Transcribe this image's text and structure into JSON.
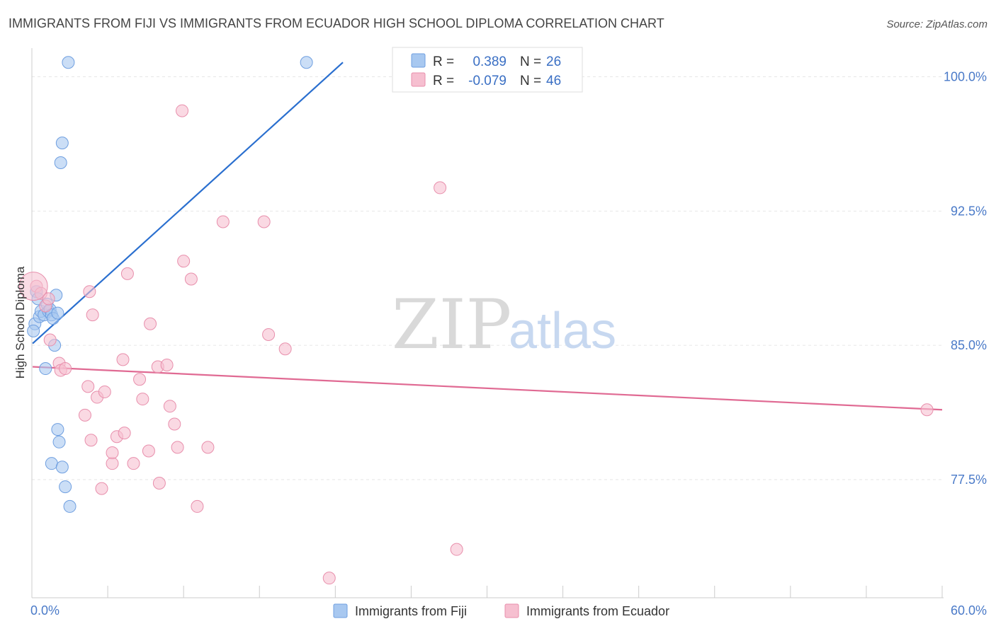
{
  "chart_data": {
    "type": "scatter",
    "title": "IMMIGRANTS FROM FIJI VS IMMIGRANTS FROM ECUADOR HIGH SCHOOL DIPLOMA CORRELATION CHART",
    "source": "Source: ZipAtlas.com",
    "xlabel": "",
    "ylabel": "High School Diploma",
    "xlim": [
      0,
      60
    ],
    "ylim": [
      70.9,
      101.6
    ],
    "x_tick_labels": [
      "0.0%",
      "60.0%"
    ],
    "y_ticks": [
      77.5,
      85.0,
      92.5,
      100.0
    ],
    "y_tick_labels": [
      "77.5%",
      "85.0%",
      "92.5%",
      "100.0%"
    ],
    "watermark": {
      "zip": "ZIP",
      "atlas": "atlas"
    },
    "legend": {
      "r_label": "R =",
      "n_label": "N =",
      "entries": [
        {
          "r": "0.389",
          "n": "26"
        },
        {
          "r": "-0.079",
          "n": "46"
        }
      ]
    },
    "series": [
      {
        "name": "Immigrants from Fiji",
        "color": "#a8c8f0",
        "stroke": "#6f9fe0",
        "line_color": "#2a6fcf",
        "trend": [
          [
            0.05,
            85.1
          ],
          [
            20.5,
            100.8
          ]
        ],
        "points": [
          [
            0.2,
            86.2
          ],
          [
            0.3,
            88.0
          ],
          [
            0.4,
            87.6
          ],
          [
            0.5,
            86.6
          ],
          [
            0.6,
            86.9
          ],
          [
            0.8,
            86.7
          ],
          [
            0.9,
            83.7
          ],
          [
            1.0,
            87.3
          ],
          [
            1.1,
            86.9
          ],
          [
            1.2,
            87.0
          ],
          [
            1.3,
            86.7
          ],
          [
            1.4,
            86.5
          ],
          [
            1.5,
            85.0
          ],
          [
            1.6,
            87.8
          ],
          [
            1.7,
            86.8
          ],
          [
            1.7,
            80.3
          ],
          [
            1.8,
            79.6
          ],
          [
            1.3,
            78.4
          ],
          [
            2.0,
            78.2
          ],
          [
            2.2,
            77.1
          ],
          [
            2.5,
            76.0
          ],
          [
            2.0,
            96.3
          ],
          [
            1.9,
            95.2
          ],
          [
            2.4,
            100.8
          ],
          [
            18.1,
            100.8
          ],
          [
            0.1,
            85.8
          ]
        ]
      },
      {
        "name": "Immigrants from Ecuador",
        "color": "#f6bfd0",
        "stroke": "#e88fac",
        "line_color": "#e06a93",
        "trend": [
          [
            0.05,
            83.8
          ],
          [
            60,
            81.4
          ]
        ],
        "points": [
          [
            0.3,
            88.3
          ],
          [
            0.6,
            87.9
          ],
          [
            0.9,
            87.2
          ],
          [
            1.1,
            87.6
          ],
          [
            1.2,
            85.3
          ],
          [
            1.8,
            84.0
          ],
          [
            1.9,
            83.6
          ],
          [
            2.2,
            83.7
          ],
          [
            3.7,
            82.7
          ],
          [
            3.5,
            81.1
          ],
          [
            3.9,
            79.7
          ],
          [
            4.3,
            82.1
          ],
          [
            3.8,
            88.0
          ],
          [
            4.0,
            86.7
          ],
          [
            4.6,
            77.0
          ],
          [
            4.8,
            82.4
          ],
          [
            5.3,
            78.4
          ],
          [
            5.3,
            79.0
          ],
          [
            5.6,
            79.9
          ],
          [
            6.0,
            84.2
          ],
          [
            6.1,
            80.1
          ],
          [
            6.3,
            89.0
          ],
          [
            6.7,
            78.4
          ],
          [
            7.1,
            83.1
          ],
          [
            7.3,
            82.0
          ],
          [
            7.7,
            79.1
          ],
          [
            7.8,
            86.2
          ],
          [
            8.3,
            83.8
          ],
          [
            8.4,
            77.3
          ],
          [
            8.9,
            83.9
          ],
          [
            9.1,
            81.6
          ],
          [
            9.4,
            80.6
          ],
          [
            9.6,
            79.3
          ],
          [
            10.0,
            89.7
          ],
          [
            10.5,
            88.7
          ],
          [
            10.9,
            76.0
          ],
          [
            11.6,
            79.3
          ],
          [
            12.6,
            91.9
          ],
          [
            15.3,
            91.9
          ],
          [
            15.6,
            85.6
          ],
          [
            16.7,
            84.8
          ],
          [
            19.6,
            72.0
          ],
          [
            26.9,
            93.8
          ],
          [
            28.0,
            73.6
          ],
          [
            59.0,
            81.4
          ],
          [
            9.9,
            98.1
          ]
        ]
      }
    ]
  }
}
